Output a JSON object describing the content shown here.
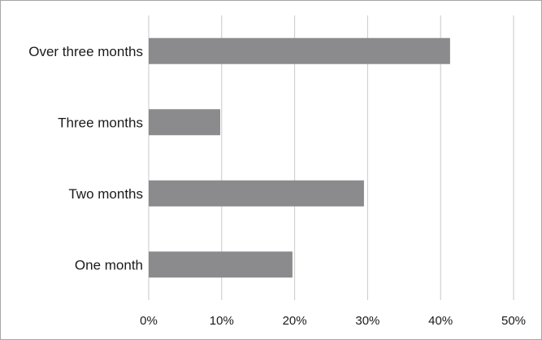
{
  "chart_data": {
    "type": "bar",
    "orientation": "horizontal",
    "categories": [
      "Over three months",
      "Three months",
      "Two months",
      "One month"
    ],
    "values": [
      41.3,
      9.8,
      29.5,
      19.7
    ],
    "value_unit": "%",
    "xlim": [
      0,
      50
    ],
    "x_ticks": [
      0,
      10,
      20,
      30,
      40,
      50
    ],
    "x_tick_labels": [
      "0%",
      "10%",
      "20%",
      "30%",
      "40%",
      "50%"
    ],
    "grid": "vertical",
    "legend": "none",
    "title": "",
    "xlabel": "",
    "ylabel": "",
    "colors": {
      "bar": "#8b8b8d",
      "grid": "#c8c8c8",
      "frame": "#a6a6a6",
      "text": "#1a1a1a"
    }
  }
}
